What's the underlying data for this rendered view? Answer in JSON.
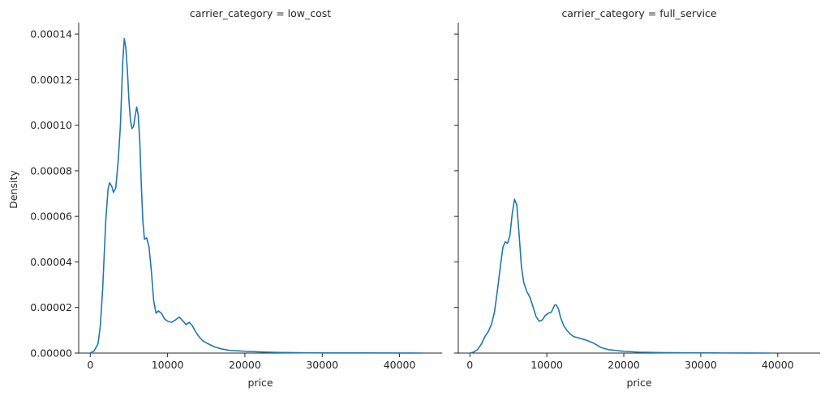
{
  "chart_data": [
    {
      "type": "line",
      "title": "carrier_category = low_cost",
      "xlabel": "price",
      "ylabel": "Density",
      "xlim": [
        -1500,
        45500
      ],
      "ylim": [
        0,
        0.000145
      ],
      "xticks": [
        0,
        10000,
        20000,
        30000,
        40000
      ],
      "xtick_labels": [
        "0",
        "10000",
        "20000",
        "30000",
        "40000"
      ],
      "yticks": [
        0,
        2e-05,
        4e-05,
        6e-05,
        8e-05,
        0.0001,
        0.00012,
        0.00014
      ],
      "ytick_labels": [
        "0.00000",
        "0.00002",
        "0.00004",
        "0.00006",
        "0.00008",
        "0.00010",
        "0.00012",
        "0.00014"
      ],
      "grid": false,
      "series": [
        {
          "color": "#1f77b4",
          "x": [
            0,
            500,
            1000,
            1300,
            1600,
            2000,
            2300,
            2500,
            2800,
            3000,
            3300,
            3600,
            3900,
            4200,
            4400,
            4600,
            4800,
            5000,
            5200,
            5400,
            5600,
            5800,
            6000,
            6200,
            6400,
            6600,
            6800,
            7000,
            7300,
            7600,
            7900,
            8200,
            8500,
            8800,
            9200,
            9600,
            10000,
            10500,
            11000,
            11500,
            12000,
            12400,
            12800,
            13200,
            13600,
            14000,
            14500,
            15000,
            16000,
            17000,
            18000,
            20000,
            22000,
            24000,
            26000,
            28000,
            30000,
            35000,
            40000,
            43000
          ],
          "y": [
            0,
            1e-06,
            4e-06,
            1.2e-05,
            2.8e-05,
            5.8e-05,
            7.2e-05,
            7.48e-05,
            7.3e-05,
            7.05e-05,
            7.25e-05,
            8.4e-05,
            0.0001,
            0.000128,
            0.000138,
            0.000134,
            0.000124,
            0.000111,
            0.000102,
            9.85e-05,
            9.95e-05,
            0.000104,
            0.000108,
            0.0001045,
            9.3e-05,
            7.4e-05,
            5.8e-05,
            5e-05,
            5.05e-05,
            4.65e-05,
            3.6e-05,
            2.3e-05,
            1.75e-05,
            1.85e-05,
            1.75e-05,
            1.5e-05,
            1.4e-05,
            1.35e-05,
            1.45e-05,
            1.58e-05,
            1.4e-05,
            1.25e-05,
            1.35e-05,
            1.2e-05,
            9.5e-06,
            7.5e-06,
            5.5e-06,
            4.5e-06,
            2.8e-06,
            1.8e-06,
            1.2e-06,
            8e-07,
            5e-07,
            3e-07,
            2e-07,
            1e-07,
            8e-08,
            5e-08,
            2e-08,
            0
          ]
        }
      ]
    },
    {
      "type": "line",
      "title": "carrier_category = full_service",
      "xlabel": "price",
      "ylabel": "",
      "xlim": [
        -1500,
        45500
      ],
      "ylim": [
        0,
        0.000145
      ],
      "xticks": [
        0,
        10000,
        20000,
        30000,
        40000
      ],
      "xtick_labels": [
        "0",
        "10000",
        "20000",
        "30000",
        "40000"
      ],
      "grid": false,
      "series": [
        {
          "color": "#1f77b4",
          "x": [
            0,
            500,
            1000,
            1500,
            2000,
            2400,
            2800,
            3200,
            3600,
            4000,
            4300,
            4600,
            4900,
            5200,
            5500,
            5800,
            6100,
            6400,
            6700,
            7000,
            7400,
            7800,
            8200,
            8600,
            9000,
            9400,
            9800,
            10200,
            10600,
            11000,
            11200,
            11500,
            11800,
            12200,
            12600,
            13000,
            13500,
            14000,
            15000,
            16000,
            17000,
            18000,
            20000,
            22000,
            25000,
            28000,
            32000,
            36000,
            39000
          ],
          "y": [
            0,
            5e-07,
            1.5e-06,
            4e-06,
            7.5e-06,
            9.5e-06,
            1.25e-05,
            1.8e-05,
            2.8e-05,
            3.9e-05,
            4.65e-05,
            4.88e-05,
            4.82e-05,
            5.15e-05,
            6.1e-05,
            6.75e-05,
            6.5e-05,
            5.2e-05,
            3.8e-05,
            3.1e-05,
            2.7e-05,
            2.45e-05,
            2.05e-05,
            1.6e-05,
            1.4e-05,
            1.45e-05,
            1.65e-05,
            1.75e-05,
            1.8e-05,
            2.1e-05,
            2.12e-05,
            1.95e-05,
            1.55e-05,
            1.2e-05,
            1e-05,
            8.5e-06,
            7.2e-06,
            6.8e-06,
            5.8e-06,
            4.5e-06,
            2.5e-06,
            1.5e-06,
            8e-07,
            4e-07,
            2e-07,
            1e-07,
            5e-08,
            2e-08,
            0
          ]
        }
      ]
    }
  ]
}
